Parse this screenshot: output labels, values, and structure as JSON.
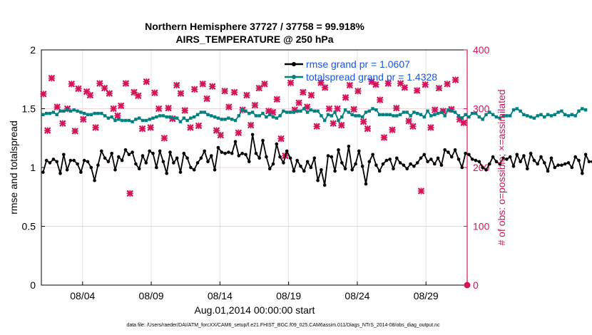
{
  "chart_data": {
    "type": "line",
    "title": "Northern Hemisphere 37727 / 37758 = 99.918%",
    "subtitle": "AIRS_TEMPERATURE @ 250 hPa",
    "xlabel": "Aug.01,2014 00:00:00 start",
    "ylabel": "rmse and totalspread",
    "ylabel_right": "# of obs: o=possible; ×=assimilated",
    "xlim": [
      0,
      31.0
    ],
    "ylim": [
      0,
      2
    ],
    "ylim_right": [
      0,
      400
    ],
    "x_ticks": [
      3,
      8,
      13,
      18,
      23,
      28
    ],
    "x_tick_labels": [
      "08/04",
      "08/09",
      "08/14",
      "08/19",
      "08/24",
      "08/29"
    ],
    "y_ticks": [
      0,
      0.5,
      1,
      1.5,
      2
    ],
    "y_tick_labels": [
      "0",
      "0.5",
      "1",
      "1.5",
      "2"
    ],
    "y_right_ticks": [
      0,
      100,
      200,
      300,
      400
    ],
    "y_right_tick_labels": [
      "0",
      "100",
      "200",
      "300",
      "400"
    ],
    "grid": true,
    "legend_position": "top-right",
    "footer": "data file: /Users/raeder/DAI/ATM_forcXX/CAM6_setup/f.e21.FHIST_BGC.f09_025.CAM6assim.011/Diags_NTrS_2014-08/obs_diag_output.nc",
    "colors": {
      "rmse": "#000000",
      "spread": "#008080",
      "obs": "#d4145a",
      "legend_text": "#1a55e6",
      "right_axis": "#d4145a"
    },
    "series": [
      {
        "name": "rmse grand pr = 1.0607",
        "x_start": 0.125,
        "x_step": 0.25,
        "values": [
          0.96,
          1.06,
          1.04,
          1.07,
          1.05,
          0.95,
          1.11,
          0.98,
          1.06,
          1.06,
          1.03,
          0.96,
          1.06,
          1.05,
          1.0,
          0.89,
          1.02,
          1.14,
          1.08,
          1.05,
          1.12,
          0.98,
          1.09,
          1.06,
          1.15,
          1.11,
          1.13,
          1.03,
          0.99,
          1.1,
          1.04,
          1.14,
          1.12,
          1.0,
          1.14,
          1.05,
          0.95,
          1.13,
          1.04,
          1.08,
          0.96,
          1.12,
          1.08,
          1.0,
          0.98,
          1.04,
          1.08,
          1.14,
          1.05,
          1.1,
          0.98,
          1.17,
          1.13,
          1.12,
          1.13,
          1.12,
          1.22,
          1.1,
          1.12,
          1.11,
          1.05,
          1.28,
          1.12,
          1.08,
          1.23,
          1.09,
          0.99,
          1.03,
          1.2,
          1.09,
          1.04,
          1.14,
          1.08,
          0.97,
          1.06,
          1.01,
          0.97,
          1.05,
          1.0,
          1.08,
          0.89,
          0.98,
          0.85,
          1.1,
          1.09,
          0.97,
          1.15,
          1.04,
          0.99,
          1.18,
          0.98,
          1.03,
          1.14,
          1.01,
          0.86,
          1.05,
          1.11,
          1.02,
          0.97,
          1.03,
          1.06,
          1.07,
          0.99,
          1.08,
          1.04,
          1.02,
          0.99,
          1.03,
          1.01,
          1.04,
          1.08,
          1.11,
          1.05,
          1.07,
          1.03,
          1.08,
          1.02,
          1.15,
          1.13,
          1.09,
          1.15,
          1.07,
          1.0,
          1.12,
          1.11,
          1.07,
          1.06,
          1.05,
          1.0,
          0.98,
          1.03,
          1.09,
          1.05,
          1.03,
          1.08,
          1.07,
          1.09,
          1.01,
          1.11,
          1.05,
          1.1,
          0.99,
          1.12,
          1.06,
          1.03,
          1.09,
          1.04,
          0.97,
          1.08,
          1.0,
          1.02,
          1.02,
          1.03,
          1.04,
          1.0,
          1.09,
          1.06,
          0.95,
          1.11,
          1.05,
          1.05
        ]
      },
      {
        "name": "totalspread grand pr = 1.4328",
        "x_start": 0.125,
        "x_step": 0.25,
        "values": [
          1.45,
          1.46,
          1.46,
          1.47,
          1.45,
          1.48,
          1.48,
          1.49,
          1.48,
          1.49,
          1.48,
          1.47,
          1.46,
          1.45,
          1.45,
          1.46,
          1.46,
          1.46,
          1.44,
          1.42,
          1.43,
          1.4,
          1.41,
          1.4,
          1.4,
          1.4,
          1.39,
          1.41,
          1.42,
          1.4,
          1.4,
          1.41,
          1.42,
          1.43,
          1.44,
          1.44,
          1.43,
          1.43,
          1.42,
          1.42,
          1.39,
          1.42,
          1.4,
          1.42,
          1.43,
          1.45,
          1.47,
          1.47,
          1.45,
          1.44,
          1.43,
          1.42,
          1.41,
          1.41,
          1.42,
          1.41,
          1.4,
          1.44,
          1.49,
          1.48,
          1.46,
          1.47,
          1.44,
          1.44,
          1.46,
          1.43,
          1.45,
          1.43,
          1.42,
          1.44,
          1.48,
          1.47,
          1.47,
          1.47,
          1.48,
          1.48,
          1.5,
          1.47,
          1.49,
          1.48,
          1.48,
          1.44,
          1.4,
          1.45,
          1.44,
          1.47,
          1.4,
          1.43,
          1.49,
          1.47,
          1.45,
          1.44,
          1.44,
          1.43,
          1.47,
          1.48,
          1.5,
          1.49,
          1.45,
          1.45,
          1.45,
          1.45,
          1.44,
          1.44,
          1.45,
          1.47,
          1.47,
          1.44,
          1.47,
          1.46,
          1.45,
          1.43,
          1.48,
          1.44,
          1.45,
          1.46,
          1.47,
          1.44,
          1.49,
          1.48,
          1.47,
          1.44,
          1.42,
          1.45,
          1.43,
          1.46,
          1.46,
          1.43,
          1.41,
          1.45,
          1.47,
          1.45,
          1.43,
          1.42,
          1.44,
          1.44,
          1.44,
          1.49,
          1.5,
          1.48,
          1.45,
          1.44,
          1.43,
          1.42,
          1.44,
          1.45,
          1.43,
          1.45,
          1.44,
          1.45,
          1.47,
          1.48,
          1.45,
          1.44,
          1.45,
          1.44,
          1.48,
          1.5,
          1.49
        ]
      },
      {
        "name": "obs assimilated",
        "axis": "right",
        "marker": "x",
        "points": [
          [
            0.15,
            325
          ],
          [
            0.45,
            263
          ],
          [
            0.75,
            352
          ],
          [
            1.15,
            303
          ],
          [
            1.55,
            275
          ],
          [
            1.9,
            300
          ],
          [
            2.2,
            342
          ],
          [
            2.45,
            262
          ],
          [
            2.7,
            334
          ],
          [
            3.05,
            282
          ],
          [
            3.3,
            329
          ],
          [
            3.55,
            323
          ],
          [
            3.95,
            268
          ],
          [
            4.25,
            343
          ],
          [
            4.6,
            335
          ],
          [
            4.95,
            326
          ],
          [
            5.25,
            300
          ],
          [
            5.55,
            288
          ],
          [
            5.8,
            305
          ],
          [
            6.15,
            343
          ],
          [
            6.45,
            156
          ],
          [
            6.75,
            328
          ],
          [
            7.05,
            322
          ],
          [
            7.35,
            266
          ],
          [
            7.65,
            346
          ],
          [
            7.95,
            268
          ],
          [
            8.25,
            327
          ],
          [
            8.55,
            300
          ],
          [
            8.95,
            250
          ],
          [
            9.25,
            301
          ],
          [
            9.55,
            283
          ],
          [
            9.85,
            340
          ],
          [
            10.15,
            326
          ],
          [
            10.45,
            297
          ],
          [
            10.85,
            268
          ],
          [
            11.15,
            333
          ],
          [
            11.45,
            271
          ],
          [
            11.75,
            342
          ],
          [
            12.05,
            317
          ],
          [
            12.45,
            338
          ],
          [
            12.75,
            263
          ],
          [
            13.05,
            255
          ],
          [
            13.35,
            330
          ],
          [
            13.65,
            303
          ],
          [
            14.05,
            328
          ],
          [
            14.35,
            259
          ],
          [
            14.65,
            298
          ],
          [
            14.95,
            323
          ],
          [
            15.25,
            272
          ],
          [
            15.55,
            306
          ],
          [
            15.85,
            335
          ],
          [
            16.25,
            342
          ],
          [
            16.55,
            296
          ],
          [
            16.85,
            294
          ],
          [
            17.15,
            316
          ],
          [
            17.45,
            249
          ],
          [
            17.75,
            220
          ],
          [
            18.15,
            344
          ],
          [
            18.45,
            298
          ],
          [
            18.75,
            310
          ],
          [
            19.05,
            328
          ],
          [
            19.35,
            303
          ],
          [
            19.65,
            323
          ],
          [
            20.05,
            270
          ],
          [
            20.35,
            344
          ],
          [
            20.65,
            336
          ],
          [
            20.95,
            300
          ],
          [
            21.25,
            275
          ],
          [
            21.55,
            300
          ],
          [
            21.85,
            272
          ],
          [
            22.15,
            319
          ],
          [
            22.45,
            340
          ],
          [
            22.75,
            299
          ],
          [
            23.05,
            330
          ],
          [
            23.45,
            278
          ],
          [
            23.75,
            266
          ],
          [
            24.05,
            346
          ],
          [
            24.35,
            341
          ],
          [
            24.65,
            315
          ],
          [
            24.95,
            251
          ],
          [
            25.25,
            343
          ],
          [
            25.55,
            264
          ],
          [
            25.85,
            301
          ],
          [
            26.15,
            343
          ],
          [
            26.45,
            336
          ],
          [
            26.75,
            279
          ],
          [
            27.05,
            270
          ],
          [
            27.35,
            331
          ],
          [
            27.65,
            160
          ],
          [
            27.95,
            341
          ],
          [
            28.35,
            268
          ],
          [
            28.65,
            298
          ],
          [
            28.95,
            335
          ],
          [
            29.25,
            296
          ],
          [
            29.55,
            342
          ],
          [
            29.85,
            299
          ],
          [
            30.15,
            349
          ],
          [
            30.45,
            282
          ],
          [
            30.75,
            276
          ]
        ]
      },
      {
        "name": "obs possible",
        "axis": "right",
        "marker": "o",
        "points": [
          [
            31.0,
            0
          ]
        ]
      }
    ]
  }
}
